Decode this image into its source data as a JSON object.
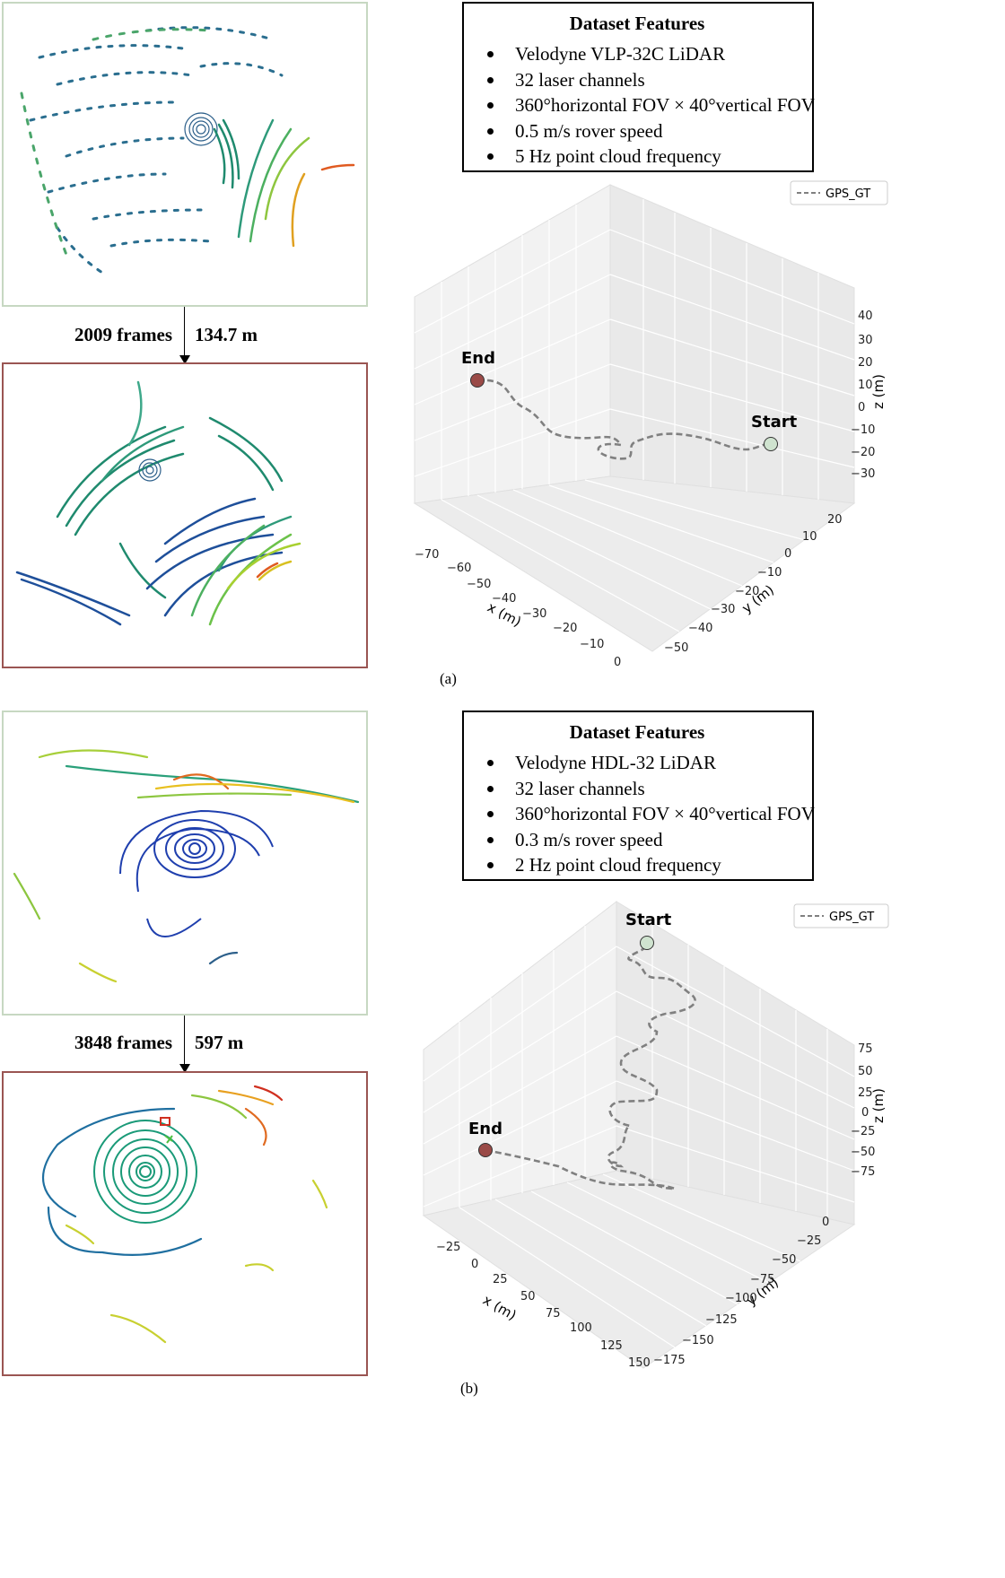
{
  "panels": [
    {
      "caption": "(a)",
      "frames_label": "2009 frames",
      "distance_label": "134.7 m",
      "features": {
        "title": "Dataset Features",
        "items": [
          "Velodyne VLP-32C LiDAR",
          "32 laser channels",
          "360°horizontal FOV × 40°vertical FOV",
          "0.5 m/s rover speed",
          "5 Hz point cloud frequency"
        ]
      },
      "plot": {
        "legend": "GPS_GT",
        "start_label": "Start",
        "end_label": "End",
        "x_axis_label": "x (m)",
        "y_axis_label": "y (m)",
        "z_axis_label": "z (m)",
        "x_ticks": [
          "−70",
          "−60",
          "−50",
          "−40",
          "−30",
          "−20",
          "−10",
          "0"
        ],
        "y_ticks": [
          "20",
          "10",
          "0",
          "−10",
          "−20",
          "−30",
          "−40",
          "−50"
        ],
        "z_ticks": [
          "40",
          "30",
          "20",
          "10",
          "0",
          "−10",
          "−20",
          "−30"
        ]
      }
    },
    {
      "caption": "(b)",
      "frames_label": "3848 frames",
      "distance_label": "597 m",
      "features": {
        "title": "Dataset Features",
        "items": [
          "Velodyne HDL-32 LiDAR",
          "32 laser channels",
          "360°horizontal FOV × 40°vertical FOV",
          "0.3 m/s rover speed",
          "2 Hz point cloud frequency"
        ]
      },
      "plot": {
        "legend": "GPS_GT",
        "start_label": "Start",
        "end_label": "End",
        "x_axis_label": "x (m)",
        "y_axis_label": "y (m)",
        "z_axis_label": "z (m)",
        "x_ticks": [
          "−25",
          "0",
          "25",
          "50",
          "75",
          "100",
          "125",
          "150"
        ],
        "y_ticks": [
          "0",
          "−25",
          "−50",
          "−75",
          "−100",
          "−125",
          "−150",
          "−175"
        ],
        "z_ticks": [
          "75",
          "50",
          "25",
          "0",
          "−25",
          "−50",
          "−75"
        ]
      }
    }
  ],
  "colors": {
    "start_marker": "#cfe3cf",
    "end_marker": "#9a4a47",
    "trajectory": "#808080",
    "box_top_border": "#c7d8c2",
    "box_bottom_border": "#9a5552"
  }
}
